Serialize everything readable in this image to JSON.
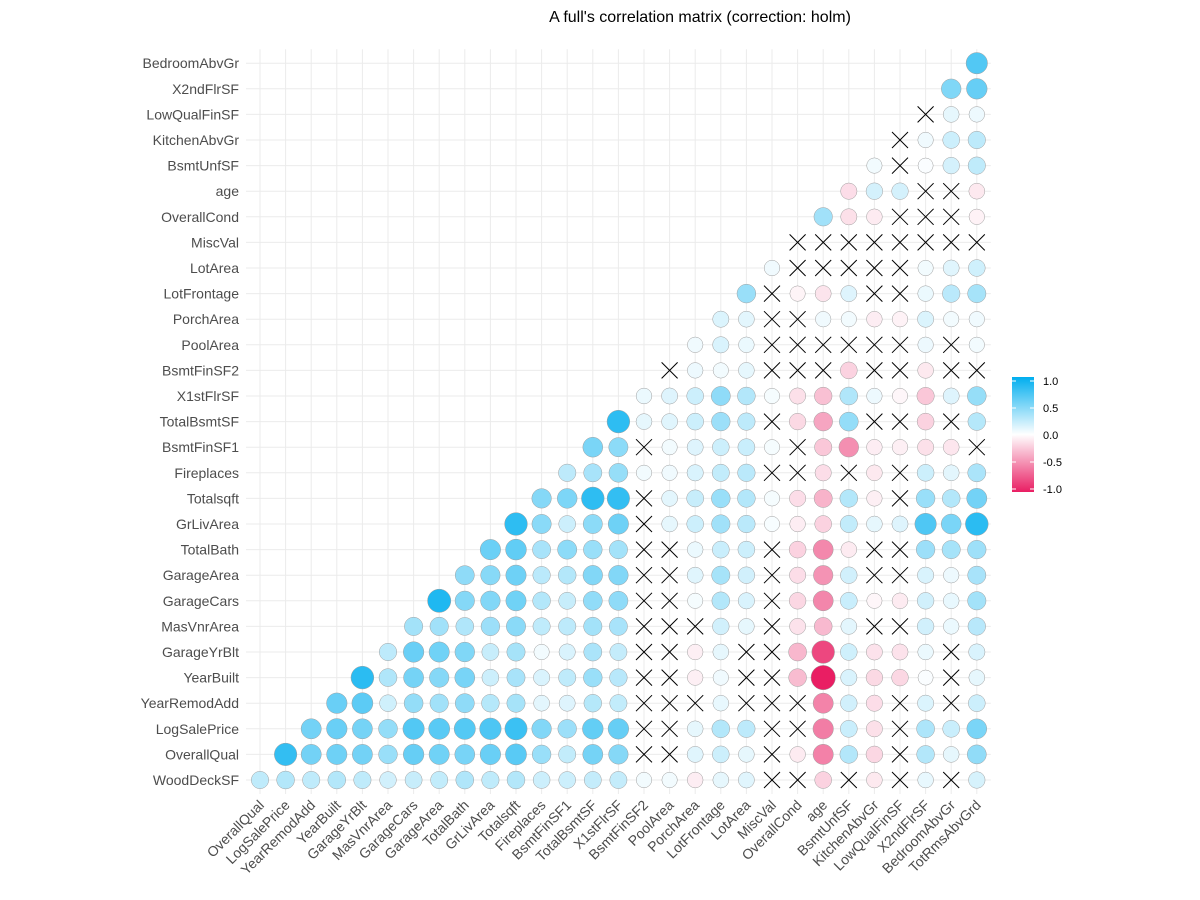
{
  "chart_data": {
    "type": "heatmap",
    "title": "A full's correlation matrix (correction: holm)",
    "xlabel": "",
    "ylabel": "",
    "variables": [
      "WoodDeckSF",
      "OverallQual",
      "LogSalePrice",
      "YearRemodAdd",
      "YearBuilt",
      "GarageYrBlt",
      "MasVnrArea",
      "GarageCars",
      "GarageArea",
      "TotalBath",
      "GrLivArea",
      "Totalsqft",
      "Fireplaces",
      "BsmtFinSF1",
      "TotalBsmtSF",
      "X1stFlrSF",
      "BsmtFinSF2",
      "PoolArea",
      "PorchArea",
      "LotFrontage",
      "LotArea",
      "MiscVal",
      "OverallCond",
      "age",
      "BsmtUnfSF",
      "KitchenAbvGr",
      "LowQualFinSF",
      "X2ndFlrSF",
      "BedroomAbvGr",
      "TotRmsAbvGrd"
    ],
    "x_tick_labels": [
      "OverallQual",
      "LogSalePrice",
      "YearRemodAdd",
      "YearBuilt",
      "GarageYrBlt",
      "MasVnrArea",
      "GarageCars",
      "GarageArea",
      "TotalBath",
      "GrLivArea",
      "Totalsqft",
      "Fireplaces",
      "BsmtFinSF1",
      "TotalBsmtSF",
      "X1stFlrSF",
      "BsmtFinSF2",
      "PoolArea",
      "PorchArea",
      "LotFrontage",
      "LotArea",
      "MiscVal",
      "OverallCond",
      "age",
      "BsmtUnfSF",
      "KitchenAbvGr",
      "LowQualFinSF",
      "X2ndFlrSF",
      "BedroomAbvGr",
      "TotRmsAbvGrd"
    ],
    "y_tick_labels": [
      "WoodDeckSF",
      "OverallQual",
      "LogSalePrice",
      "YearRemodAdd",
      "YearBuilt",
      "GarageYrBlt",
      "MasVnrArea",
      "GarageCars",
      "GarageArea",
      "TotalBath",
      "GrLivArea",
      "Totalsqft",
      "Fireplaces",
      "BsmtFinSF1",
      "TotalBsmtSF",
      "X1stFlrSF",
      "BsmtFinSF2",
      "PoolArea",
      "PorchArea",
      "LotFrontage",
      "LotArea",
      "MiscVal",
      "OverallCond",
      "age",
      "BsmtUnfSF",
      "KitchenAbvGr",
      "LowQualFinSF",
      "X2ndFlrSF",
      "BedroomAbvGr"
    ],
    "columns": {
      "OverallQual": [
        0.25
      ],
      "LogSalePrice": [
        0.3,
        0.8
      ],
      "YearRemodAdd": [
        0.25,
        0.55,
        0.55
      ],
      "YearBuilt": [
        0.3,
        0.57,
        0.59,
        0.59
      ],
      "GarageYrBlt": [
        0.25,
        0.55,
        0.54,
        0.64,
        0.83
      ],
      "MasVnrArea": [
        0.18,
        0.4,
        0.42,
        0.19,
        0.31,
        0.26
      ],
      "GarageCars": [
        0.22,
        0.6,
        0.68,
        0.42,
        0.54,
        0.59,
        0.36
      ],
      "GarageArea": [
        0.24,
        0.56,
        0.65,
        0.37,
        0.48,
        0.56,
        0.37,
        0.88
      ],
      "TotalBath": [
        0.31,
        0.53,
        0.67,
        0.44,
        0.53,
        0.5,
        0.31,
        0.48,
        0.44
      ],
      "GrLivArea": [
        0.25,
        0.59,
        0.7,
        0.29,
        0.2,
        0.22,
        0.39,
        0.49,
        0.47,
        0.58
      ],
      "Totalsqft": [
        0.3,
        0.65,
        0.77,
        0.35,
        0.34,
        0.35,
        0.46,
        0.56,
        0.57,
        0.62,
        0.82
      ],
      "Fireplaces": [
        0.2,
        0.4,
        0.49,
        0.11,
        0.15,
        0.05,
        0.25,
        0.3,
        0.27,
        0.34,
        0.46,
        0.48
      ],
      "BsmtFinSF1": [
        0.2,
        0.24,
        0.39,
        0.13,
        0.25,
        0.15,
        0.26,
        0.22,
        0.3,
        0.45,
        0.2,
        0.51,
        0.26
      ],
      "TotalBsmtSF": [
        0.23,
        0.54,
        0.61,
        0.29,
        0.4,
        0.33,
        0.36,
        0.43,
        0.49,
        0.4,
        0.45,
        0.82,
        0.34,
        0.52
      ],
      "X1stFlrSF": [
        0.23,
        0.48,
        0.6,
        0.24,
        0.28,
        0.23,
        0.34,
        0.44,
        0.49,
        0.36,
        0.57,
        0.8,
        0.41,
        0.45,
        0.82
      ],
      "BsmtFinSF2": [
        0.05,
        null,
        null,
        null,
        null,
        null,
        null,
        null,
        null,
        null,
        null,
        null,
        0.05,
        null,
        0.1,
        0.08
      ],
      "PoolArea": [
        0.05,
        null,
        null,
        null,
        null,
        null,
        null,
        null,
        null,
        null,
        0.1,
        0.11,
        0.06,
        0.05,
        0.12,
        0.13,
        null
      ],
      "PorchArea": [
        -0.08,
        0.12,
        0.1,
        null,
        -0.07,
        -0.07,
        null,
        0.04,
        0.12,
        0.08,
        0.2,
        0.22,
        0.15,
        0.13,
        0.2,
        0.2,
        0.07,
        0.06
      ],
      "LotFrontage": [
        0.1,
        0.2,
        0.3,
        0.09,
        0.06,
        0.1,
        0.18,
        0.3,
        0.35,
        0.21,
        0.37,
        0.4,
        0.24,
        0.2,
        0.39,
        0.44,
        0.05,
        0.15,
        0.14
      ],
      "LotArea": [
        0.12,
        0.1,
        0.26,
        null,
        null,
        null,
        0.1,
        0.15,
        0.18,
        0.2,
        0.27,
        0.3,
        0.27,
        0.21,
        0.26,
        0.3,
        0.1,
        0.08,
        0.11,
        0.4
      ],
      "MiscVal": [
        null,
        null,
        null,
        null,
        null,
        null,
        null,
        null,
        null,
        null,
        0.03,
        0.04,
        null,
        0.04,
        null,
        0.04,
        null,
        null,
        null,
        null,
        0.06
      ],
      "OverallCond": [
        null,
        -0.09,
        null,
        null,
        -0.3,
        -0.32,
        -0.13,
        -0.18,
        -0.15,
        -0.2,
        -0.08,
        -0.15,
        null,
        null,
        -0.17,
        -0.14,
        null,
        null,
        null,
        -0.05,
        null,
        null
      ],
      "age": [
        -0.2,
        -0.56,
        -0.58,
        -0.55,
        -1.0,
        -0.82,
        -0.31,
        -0.54,
        -0.48,
        -0.53,
        -0.2,
        -0.34,
        -0.15,
        -0.25,
        -0.4,
        -0.28,
        null,
        null,
        0.06,
        -0.12,
        null,
        null,
        0.37
      ],
      "BsmtUnfSF": [
        null,
        0.3,
        0.21,
        0.18,
        0.15,
        0.19,
        0.11,
        0.21,
        0.18,
        -0.09,
        0.24,
        0.3,
        null,
        -0.5,
        0.42,
        0.31,
        -0.2,
        null,
        0.05,
        0.13,
        null,
        null,
        -0.14,
        -0.15
      ],
      "KitchenAbvGr": [
        -0.1,
        -0.18,
        -0.14,
        -0.15,
        -0.17,
        -0.13,
        null,
        -0.04,
        null,
        null,
        0.1,
        -0.07,
        -0.1,
        -0.08,
        null,
        0.07,
        null,
        null,
        -0.08,
        null,
        null,
        null,
        -0.09,
        0.17,
        0.05
      ],
      "LowQualFinSF": [
        null,
        null,
        null,
        null,
        -0.18,
        -0.13,
        null,
        -0.09,
        null,
        null,
        0.13,
        null,
        null,
        -0.07,
        null,
        -0.04,
        null,
        null,
        -0.06,
        null,
        null,
        null,
        null,
        0.17,
        null,
        null
      ],
      "X2ndFlrSF": [
        0.09,
        0.3,
        0.32,
        0.14,
        0.02,
        0.08,
        0.18,
        0.18,
        0.15,
        0.39,
        0.69,
        0.4,
        0.2,
        -0.14,
        -0.2,
        -0.25,
        -0.1,
        0.07,
        0.14,
        0.08,
        0.05,
        null,
        null,
        null,
        0.02,
        0.06,
        null
      ],
      "BedroomAbvGr": [
        null,
        0.1,
        0.21,
        null,
        null,
        null,
        0.08,
        0.09,
        0.07,
        0.35,
        0.52,
        0.3,
        0.11,
        -0.11,
        null,
        0.13,
        null,
        null,
        0.05,
        0.27,
        0.12,
        null,
        null,
        null,
        0.17,
        0.2,
        0.1,
        0.5
      ],
      "TotRmsAbvGrd": [
        0.16,
        0.43,
        0.52,
        0.2,
        0.1,
        0.15,
        0.28,
        0.36,
        0.34,
        0.38,
        0.83,
        0.55,
        0.33,
        null,
        0.29,
        0.41,
        null,
        0.05,
        0.06,
        0.35,
        0.19,
        null,
        -0.06,
        -0.1,
        0.25,
        0.26,
        0.07,
        0.6,
        0.68
      ]
    },
    "insignificant_marker": "x",
    "legend": {
      "ticks": [
        1.0,
        0.5,
        0.0,
        -0.5,
        -1.0
      ],
      "tick_labels": [
        "1.0",
        "0.5",
        "0.0",
        "-0.5",
        "-1.0"
      ],
      "placement": "right"
    },
    "colors": {
      "positive": "#00AEEF",
      "zero": "#FFFFFF",
      "negative": "#E91E63",
      "circle_outline": "#9e9e9e",
      "cross": "#000000"
    },
    "grid": true,
    "value_range": [
      -1.0,
      1.0
    ]
  }
}
